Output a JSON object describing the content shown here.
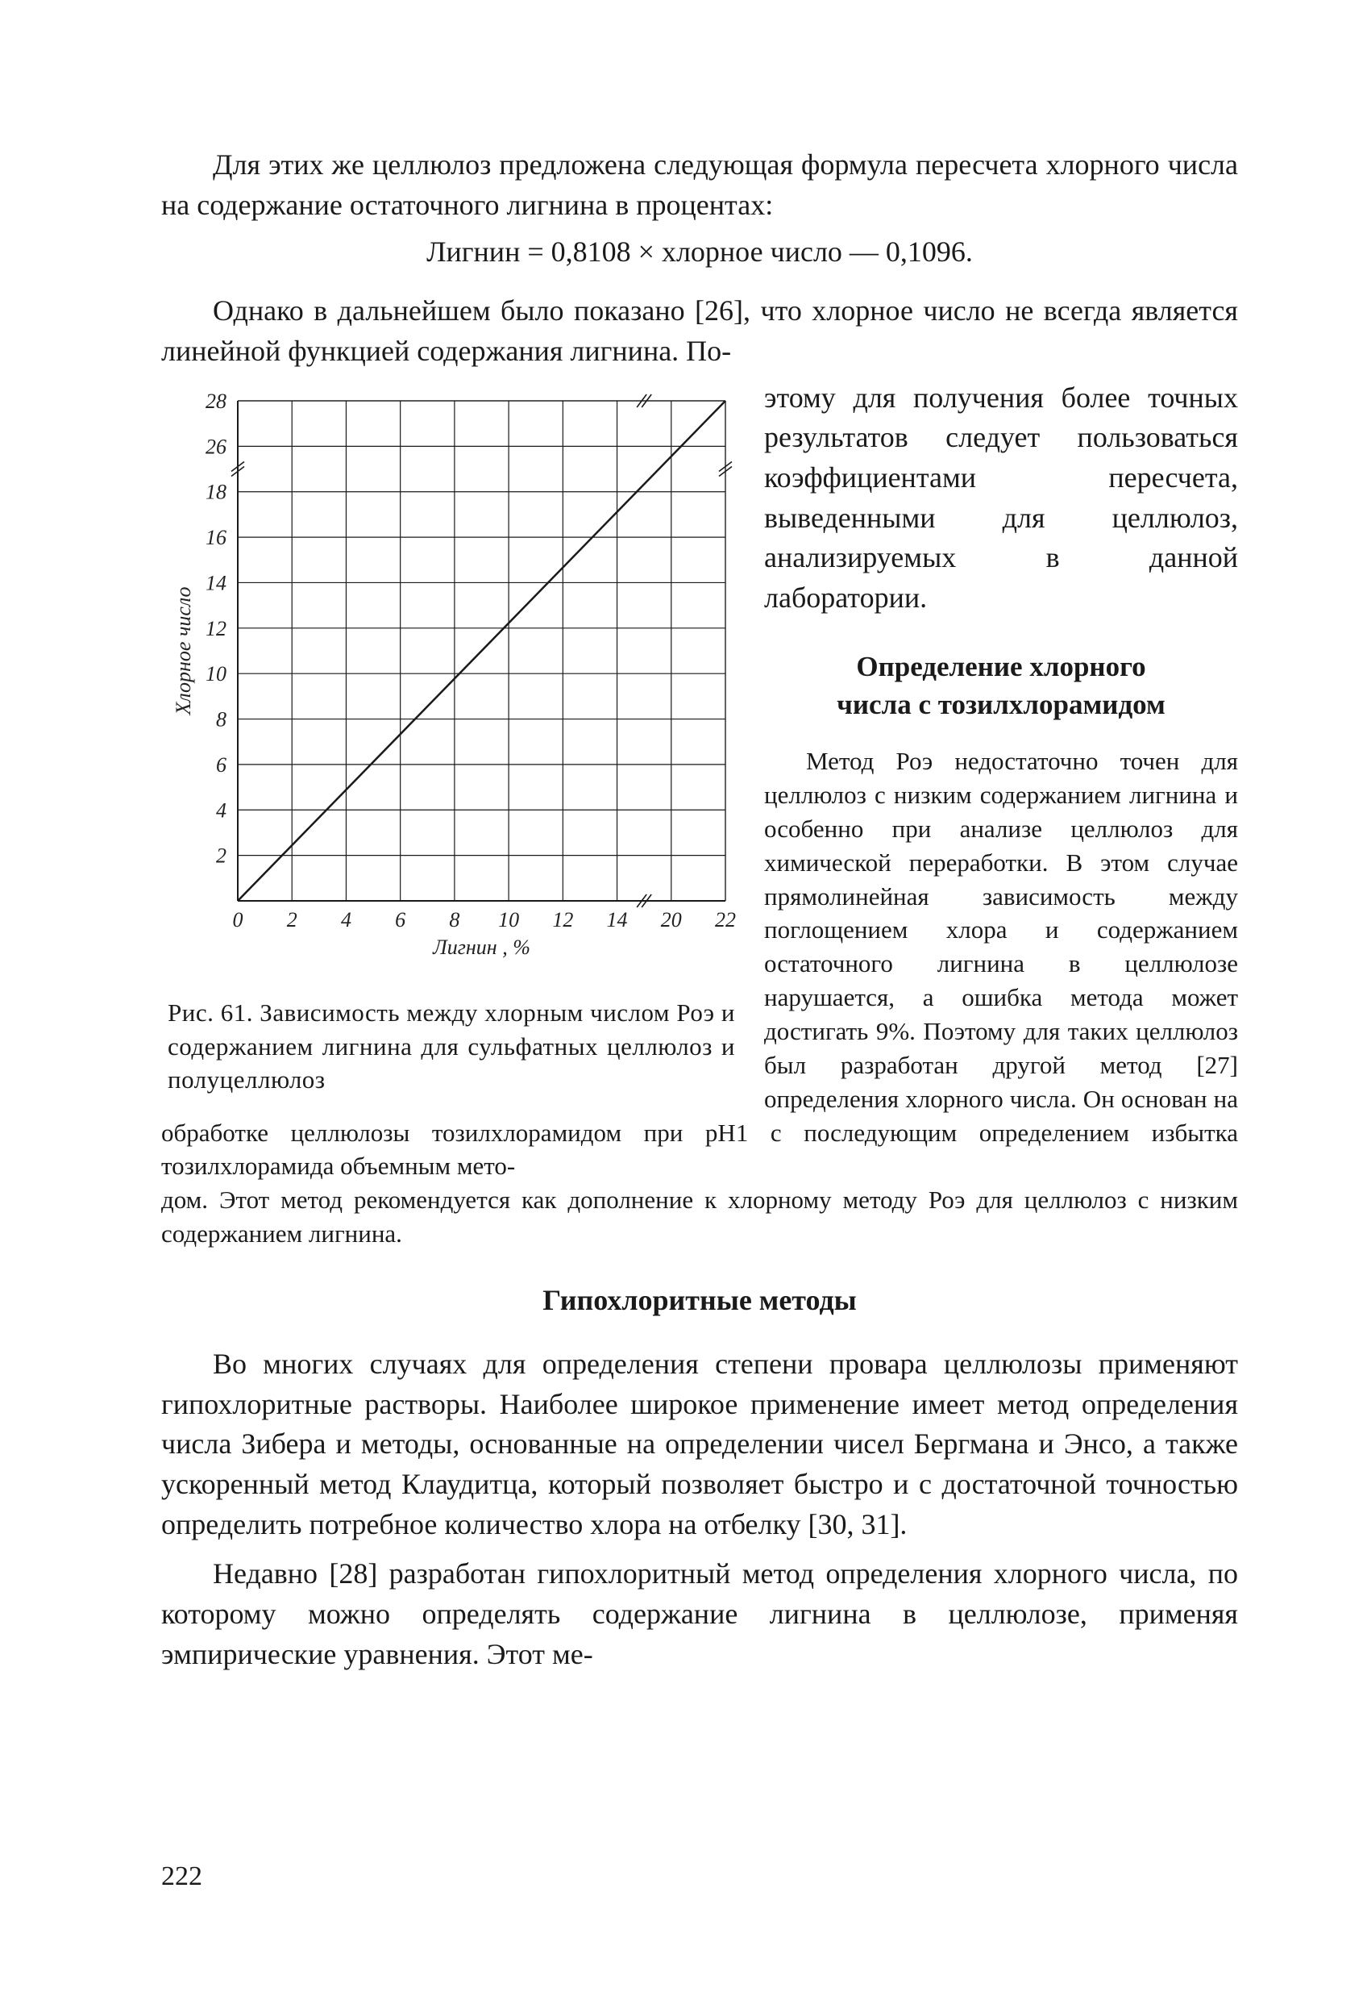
{
  "page_number": "222",
  "text": {
    "p1": "Для этих же целлюлоз предложена следующая формула пересчета хлорного числа на содержание остаточного лигнина в процентах:",
    "formula_center": "Лигнин = 0,8108 × хлорное число — 0,1096.",
    "p2": "Однако в дальнейшем было показано [26], что хлорное число не всегда является линейной функцией содержания лигнина. По-",
    "side_p1": "этому для получения более точных результатов следует пользоваться коэффициентами пересчета, выведенными для целлюлоз, анализируемых в данной лаборатории.",
    "side_head1_l1": "Определение хлорного",
    "side_head1_l2": "числа с тозилхлорамидом",
    "side_p2": "Метод Роэ недостаточно точен для целлюлоз с низким содержанием лигнина и особенно при анализе целлюлоз для химической переработки. В этом случае прямолинейная зависимость между поглощением хлора и содержанием остаточного лигнина в целлюлозе нарушается, а ошибка метода может достигать 9%. Поэтому для таких целлюлоз был разработан другой метод [27] определения хлорного числа. Он основан на обработке целлюлозы тозилхлорамидом при рН1 с последующим определением избытка тозилхлорамида объемным мето-",
    "continuation": "дом. Этот метод рекомендуется как дополнение к хлорному методу Роэ для целлюлоз с низким содержанием лигнина.",
    "h2": "Гипохлоритные методы",
    "p3": "Во многих случаях для определения степени провара целлюлозы применяют гипохлоритные растворы. Наиболее широкое применение имеет метод определения числа Зибера и методы, основанные на определении чисел Бергмана и Энсо, а также ускоренный метод Клаудитца, который позволяет быстро и с достаточной точностью определить потребное количество хлора на отбелку [30, 31].",
    "p4": "Недавно [28] разработан гипохлоритный метод определения хлорного числа, по которому можно определять содержание лигнина в целлюлозе, применяя эмпирические уравнения. Этот ме-"
  },
  "figure": {
    "caption": "Рис. 61. Зависимость между хлорным числом Роэ и содержанием лигнина для сульфатных целлюлоз и полуцеллюлоз",
    "chart": {
      "type": "line",
      "x_label": "Лигнин , %",
      "y_label": "Хлорное число",
      "x_ticks": [
        "0",
        "2",
        "4",
        "6",
        "8",
        "10",
        "12",
        "14",
        "20",
        "22"
      ],
      "x_tick_vals": [
        0,
        2,
        4,
        6,
        8,
        10,
        12,
        14,
        20,
        22
      ],
      "y_ticks": [
        "0",
        "2",
        "4",
        "6",
        "8",
        "10",
        "12",
        "14",
        "16",
        "18",
        "26",
        "28"
      ],
      "y_tick_vals": [
        0,
        2,
        4,
        6,
        8,
        10,
        12,
        14,
        16,
        18,
        26,
        28
      ],
      "x_break_between": [
        14,
        20
      ],
      "y_break_between": [
        18,
        26
      ],
      "x_range": [
        0,
        22
      ],
      "y_range": [
        0,
        28
      ],
      "series": {
        "points": [
          [
            0,
            0
          ],
          [
            22,
            28
          ]
        ],
        "line_color": "#1a1a1a",
        "line_width": 2.5
      },
      "grid_color": "#1a1a1a",
      "grid_width": 1.2,
      "axis_color": "#1a1a1a",
      "axis_width": 2,
      "background": "#ffffff"
    }
  }
}
